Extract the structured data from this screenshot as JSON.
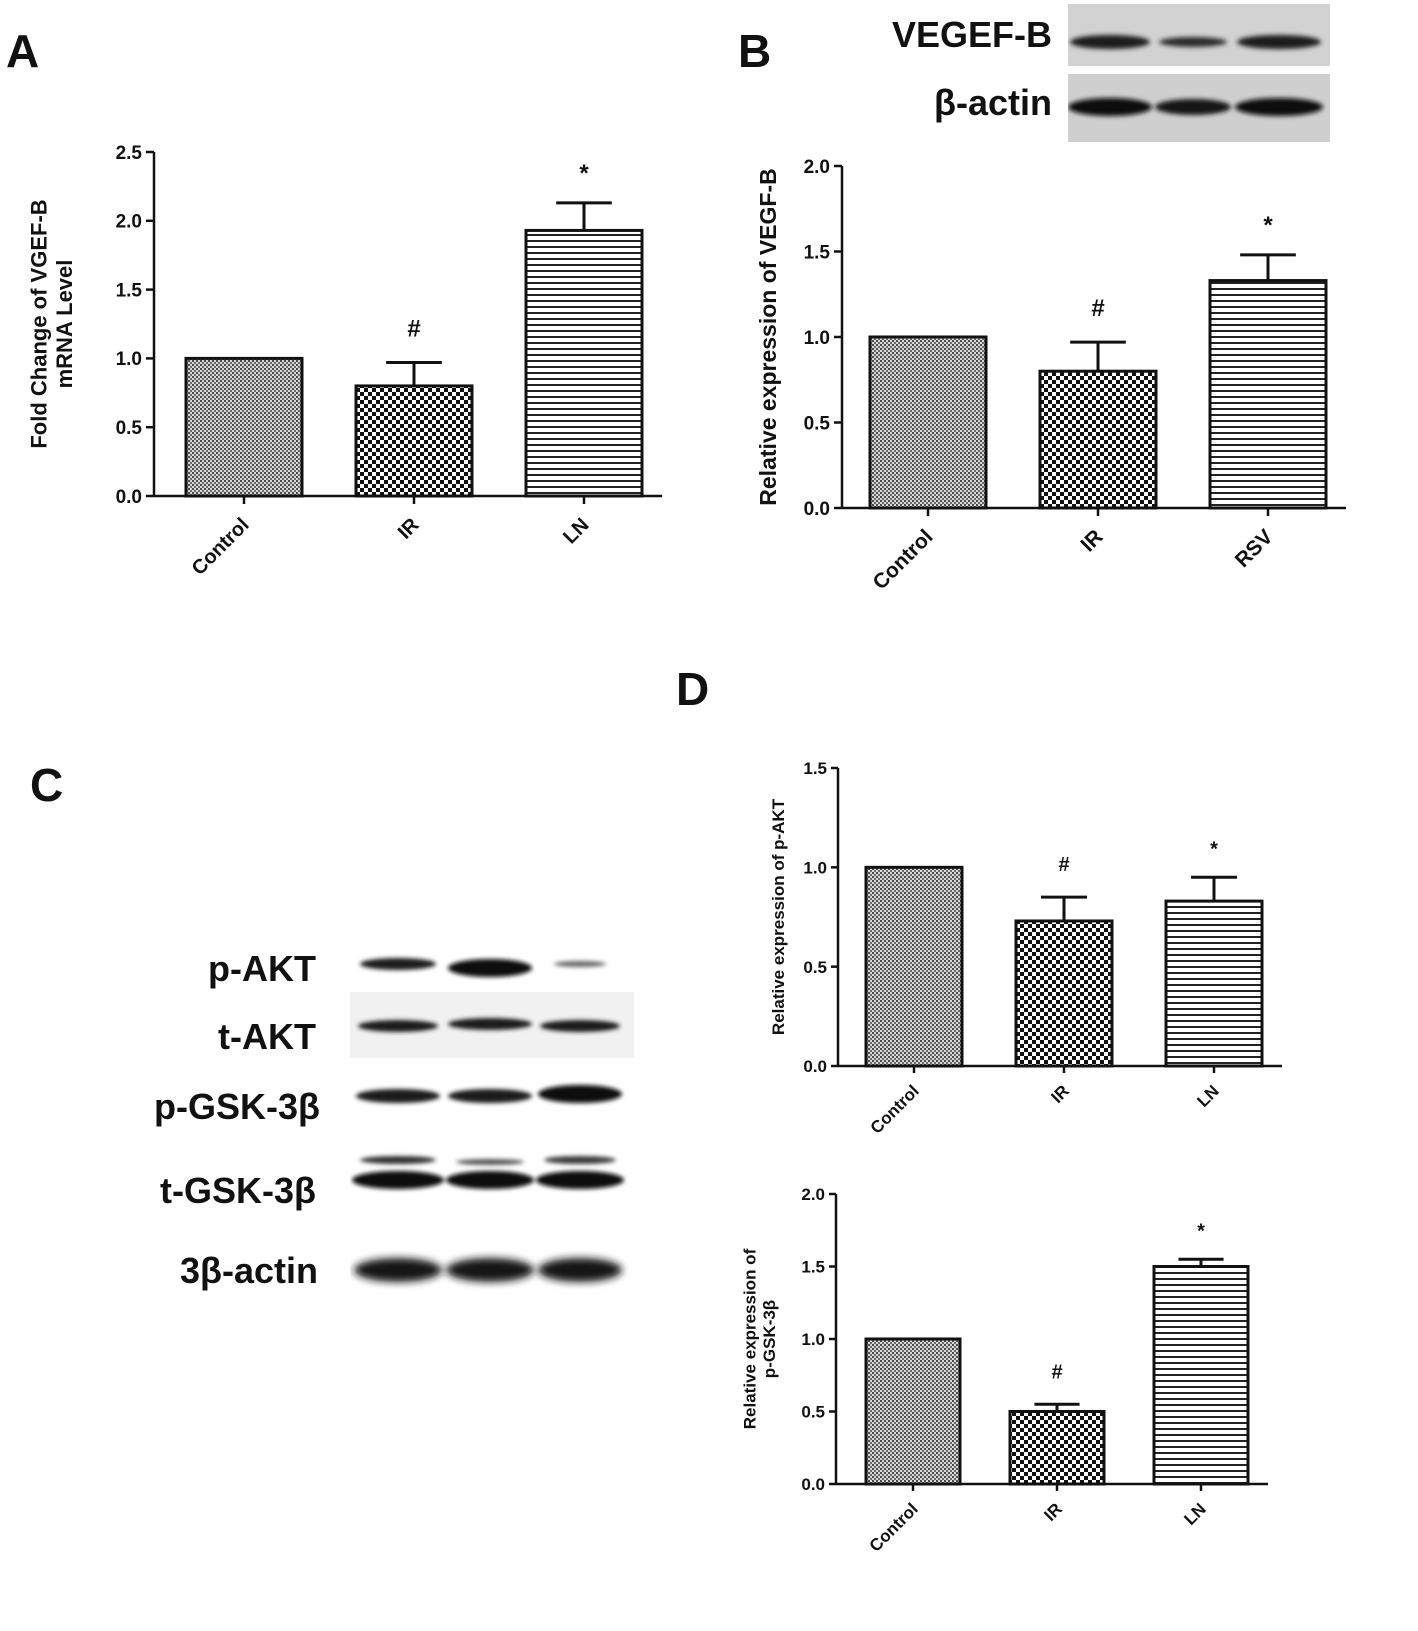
{
  "panels": {
    "a": "A",
    "b": "B",
    "c": "C",
    "d": "D"
  },
  "blot_b": {
    "rows": [
      "VEGEF-B",
      "β-actin"
    ]
  },
  "blot_c": {
    "rows": [
      "p-AKT",
      "t-AKT",
      "p-GSK-3β",
      "t-GSK-3β",
      "3β-actin"
    ]
  },
  "chart_data": [
    {
      "panel": "A",
      "type": "bar",
      "categories": [
        "Control",
        "IR",
        "LN"
      ],
      "values": [
        1.0,
        0.8,
        1.93
      ],
      "errors": [
        0,
        0.17,
        0.2
      ],
      "annotations": [
        "",
        "#",
        "*"
      ],
      "ylabel": "Fold Change of VGEF-B mRNA Level",
      "ylim": [
        0,
        2.5
      ],
      "yticks": [
        "0.0",
        "0.5",
        "1.0",
        "1.5",
        "2.0",
        "2.5"
      ],
      "patterns": [
        "fine",
        "checker",
        "hstripe"
      ]
    },
    {
      "panel": "B",
      "type": "bar",
      "categories": [
        "Control",
        "IR",
        "RSV"
      ],
      "values": [
        1.0,
        0.8,
        1.33
      ],
      "errors": [
        0,
        0.17,
        0.15
      ],
      "annotations": [
        "",
        "#",
        "*"
      ],
      "ylabel": "Relative expression of VEGF-B",
      "ylim": [
        0,
        2.0
      ],
      "yticks": [
        "0.0",
        "0.5",
        "1.0",
        "1.5",
        "2.0"
      ],
      "patterns": [
        "fine",
        "checker",
        "hstripe"
      ]
    },
    {
      "panel": "D-top",
      "type": "bar",
      "categories": [
        "Control",
        "IR",
        "LN"
      ],
      "values": [
        1.0,
        0.73,
        0.83
      ],
      "errors": [
        0,
        0.12,
        0.12
      ],
      "annotations": [
        "",
        "#",
        "*"
      ],
      "ylabel": "Relative expression of p-AKT",
      "ylim": [
        0,
        1.5
      ],
      "yticks": [
        "0.0",
        "0.5",
        "1.0",
        "1.5"
      ],
      "patterns": [
        "fine",
        "checker",
        "hstripe"
      ]
    },
    {
      "panel": "D-bottom",
      "type": "bar",
      "categories": [
        "Control",
        "IR",
        "LN"
      ],
      "values": [
        1.0,
        0.5,
        1.5
      ],
      "errors": [
        0,
        0.05,
        0.05
      ],
      "annotations": [
        "",
        "#",
        "*"
      ],
      "ylabel": "Relative expression of p-GSK-3β",
      "ylim": [
        0,
        2.0
      ],
      "yticks": [
        "0.0",
        "0.5",
        "1.0",
        "1.5",
        "2.0"
      ],
      "patterns": [
        "fine",
        "checker",
        "hstripe"
      ]
    }
  ]
}
